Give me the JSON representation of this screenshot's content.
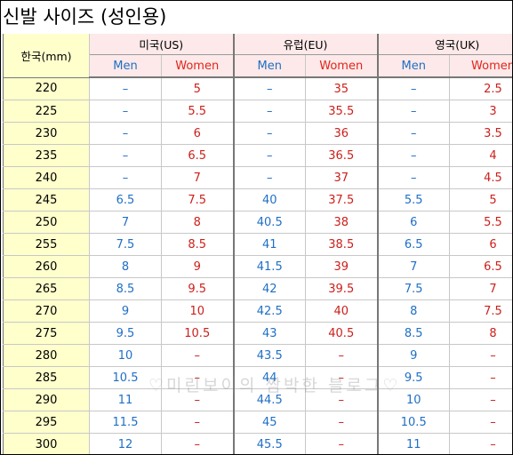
{
  "title": "신발 사이즈 (성인용)",
  "watermark": "♡미린보이의 쌈박한 블로그♡",
  "header": {
    "korea_label": "한국(mm)",
    "groups": [
      "미국(US)",
      "유럽(EU)",
      "영국(UK)"
    ],
    "men_label": "Men",
    "women_label": "Women"
  },
  "colors": {
    "men": "#1f6fc5",
    "women": "#cc1f1a",
    "korea_bg": "#ffffcc",
    "header_bg": "#fde9e9"
  },
  "rows": [
    {
      "kr": "220",
      "us_m": "–",
      "us_w": "5",
      "eu_m": "–",
      "eu_w": "35",
      "uk_m": "–",
      "uk_w": "2.5"
    },
    {
      "kr": "225",
      "us_m": "–",
      "us_w": "5.5",
      "eu_m": "–",
      "eu_w": "35.5",
      "uk_m": "–",
      "uk_w": "3"
    },
    {
      "kr": "230",
      "us_m": "–",
      "us_w": "6",
      "eu_m": "–",
      "eu_w": "36",
      "uk_m": "–",
      "uk_w": "3.5"
    },
    {
      "kr": "235",
      "us_m": "–",
      "us_w": "6.5",
      "eu_m": "–",
      "eu_w": "36.5",
      "uk_m": "–",
      "uk_w": "4"
    },
    {
      "kr": "240",
      "us_m": "–",
      "us_w": "7",
      "eu_m": "–",
      "eu_w": "37",
      "uk_m": "–",
      "uk_w": "4.5"
    },
    {
      "kr": "245",
      "us_m": "6.5",
      "us_w": "7.5",
      "eu_m": "40",
      "eu_w": "37.5",
      "uk_m": "5.5",
      "uk_w": "5"
    },
    {
      "kr": "250",
      "us_m": "7",
      "us_w": "8",
      "eu_m": "40.5",
      "eu_w": "38",
      "uk_m": "6",
      "uk_w": "5.5"
    },
    {
      "kr": "255",
      "us_m": "7.5",
      "us_w": "8.5",
      "eu_m": "41",
      "eu_w": "38.5",
      "uk_m": "6.5",
      "uk_w": "6"
    },
    {
      "kr": "260",
      "us_m": "8",
      "us_w": "9",
      "eu_m": "41.5",
      "eu_w": "39",
      "uk_m": "7",
      "uk_w": "6.5"
    },
    {
      "kr": "265",
      "us_m": "8.5",
      "us_w": "9.5",
      "eu_m": "42",
      "eu_w": "39.5",
      "uk_m": "7.5",
      "uk_w": "7"
    },
    {
      "kr": "270",
      "us_m": "9",
      "us_w": "10",
      "eu_m": "42.5",
      "eu_w": "40",
      "uk_m": "8",
      "uk_w": "7.5"
    },
    {
      "kr": "275",
      "us_m": "9.5",
      "us_w": "10.5",
      "eu_m": "43",
      "eu_w": "40.5",
      "uk_m": "8.5",
      "uk_w": "8"
    },
    {
      "kr": "280",
      "us_m": "10",
      "us_w": "–",
      "eu_m": "43.5",
      "eu_w": "–",
      "uk_m": "9",
      "uk_w": "–"
    },
    {
      "kr": "285",
      "us_m": "10.5",
      "us_w": "–",
      "eu_m": "44",
      "eu_w": "–",
      "uk_m": "9.5",
      "uk_w": "–"
    },
    {
      "kr": "290",
      "us_m": "11",
      "us_w": "–",
      "eu_m": "44.5",
      "eu_w": "–",
      "uk_m": "10",
      "uk_w": "–"
    },
    {
      "kr": "295",
      "us_m": "11.5",
      "us_w": "–",
      "eu_m": "45",
      "eu_w": "–",
      "uk_m": "10.5",
      "uk_w": "–"
    },
    {
      "kr": "300",
      "us_m": "12",
      "us_w": "–",
      "eu_m": "45.5",
      "eu_w": "–",
      "uk_m": "11",
      "uk_w": "–"
    }
  ]
}
